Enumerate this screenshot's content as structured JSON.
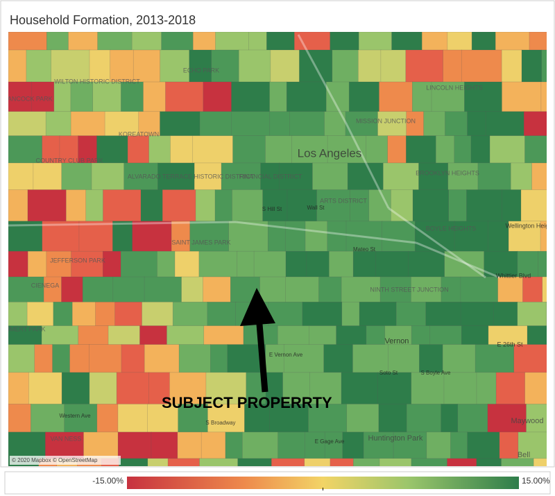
{
  "header": {
    "title": "Household Formation, 2013-2018"
  },
  "map": {
    "labels": [
      "Los Angeles",
      "FINANCIAL DISTRICT",
      "ARTS DISTRICT",
      "BOYLE HEIGHTS",
      "MISSION JUNCTION",
      "LINCOLN HEIGHTS",
      "BROOKLYN HEIGHTS",
      "NINTH STREET JUNCTION",
      "Vernon",
      "Huntington Park",
      "JEFFERSON PARK",
      "HANCOCK PARK",
      "WILTON HISTORIC DISTRICT",
      "KOREATOWN",
      "ECHO PARK",
      "COUNTRY CLUB PARK",
      "ALVARADO TERRACE HISTORIC DISTRICT",
      "SAINT JAMES PARK",
      "CIENEGA",
      "LEIMERT PARK",
      "VAN NESS",
      "Maywood",
      "Bell",
      "E 26th St",
      "Whittier Blvd",
      "Wellington Heig",
      "S Hill St",
      "Wall St",
      "Mateo St",
      "E Vernon Ave",
      "Soto St",
      "S Boyle Ave",
      "E Gage Ave",
      "S Broadway",
      "Western Ave"
    ],
    "annotation": "SUBJECT PROPERRTY",
    "attribution": "© 2020 Mapbox © OpenStreetMap"
  },
  "legend": {
    "min": {
      "value": -15,
      "label": "-15.00%"
    },
    "max": {
      "value": 15,
      "label": "15.00%"
    }
  }
}
